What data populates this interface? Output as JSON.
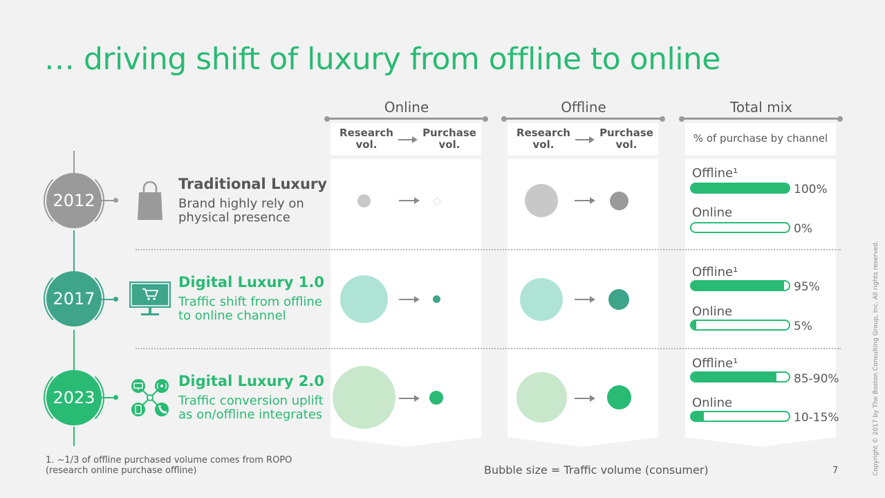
{
  "title": "… driving shift of luxury from offline to online",
  "columns": {
    "online": {
      "label": "Online",
      "research": "Research\nvol.",
      "purchase": "Purchase\nvol."
    },
    "offline": {
      "label": "Offline",
      "research": "Research\nvol.",
      "purchase": "Purchase\nvol."
    },
    "mix": {
      "label": "Total mix",
      "subheader": "% of purchase by channel"
    }
  },
  "rows": [
    {
      "year": "2012",
      "title": "Traditional Luxury",
      "desc1": "Brand highly rely on",
      "desc2": "physical presence",
      "icon": "shopping-bag-icon",
      "color": "#9a9a9a",
      "text_color": "#575757",
      "offline_label": "Offline¹",
      "online_label": "Online",
      "offline_fill": 1.0,
      "online_fill": 0.0,
      "offline_pct": "100%",
      "online_pct": "0%"
    },
    {
      "year": "2017",
      "title": "Digital Luxury 1.0",
      "desc1": "Traffic shift from offline",
      "desc2": "to online channel",
      "icon": "computer-cart-icon",
      "color": "#3ea58a",
      "text_color": "#29ba74",
      "offline_label": "Offline¹",
      "online_label": "Online",
      "offline_fill": 0.95,
      "online_fill": 0.05,
      "offline_pct": "95%",
      "online_pct": "5%"
    },
    {
      "year": "2023",
      "title": "Digital Luxury 2.0",
      "desc1": "Traffic conversion uplift",
      "desc2": "as on/offline integrates",
      "icon": "omnichannel-network-icon",
      "color": "#29ba74",
      "text_color": "#29ba74",
      "offline_label": "Offline¹",
      "online_label": "Online",
      "offline_fill": 0.875,
      "online_fill": 0.125,
      "offline_pct": "85-90%",
      "online_pct": "10-15%"
    }
  ],
  "footnote1": "1. ~1/3 of offline purchased volume comes from ROPO",
  "footnote2": "(research online purchase offline)",
  "bubble_note": "Bubble size = Traffic volume (consumer)",
  "page_number": "7",
  "copyright": "Copyright © 2017 by The Boston Consulting Group, Inc. All rights reserved.",
  "colors": {
    "accent": "#29ba74",
    "teal": "#3ea58a",
    "grey": "#9a9a9a",
    "light_grey_bubble": "#c8c8c8",
    "light_teal": "#aee3d6",
    "light_green": "#c9e8cb"
  }
}
